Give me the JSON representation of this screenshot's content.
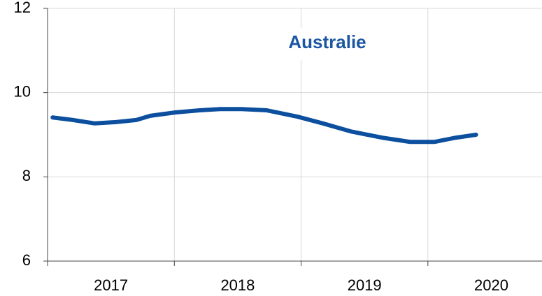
{
  "chart_data": {
    "type": "line",
    "title": "Australie",
    "categories": [
      "2017",
      "2018",
      "2019",
      "2020"
    ],
    "series": [
      {
        "name": null,
        "color": "#0b4f9e",
        "x": [
          2017.04,
          2017.2,
          2017.37,
          2017.54,
          2017.7,
          2017.81,
          2018.01,
          2018.2,
          2018.36,
          2018.53,
          2018.73,
          2018.97,
          2019.17,
          2019.39,
          2019.64,
          2019.86,
          2020.05,
          2020.22,
          2020.38
        ],
        "values": [
          9.41,
          9.35,
          9.27,
          9.3,
          9.35,
          9.45,
          9.53,
          9.58,
          9.61,
          9.61,
          9.58,
          9.43,
          9.27,
          9.08,
          8.93,
          8.83,
          8.83,
          8.93,
          9.0
        ]
      }
    ],
    "xlim": [
      2017,
      2020.9
    ],
    "xticks": [
      2017,
      2018,
      2019,
      2020
    ],
    "ylim": [
      6,
      12
    ],
    "yticks": [
      6,
      8,
      10,
      12
    ],
    "grid": true
  }
}
